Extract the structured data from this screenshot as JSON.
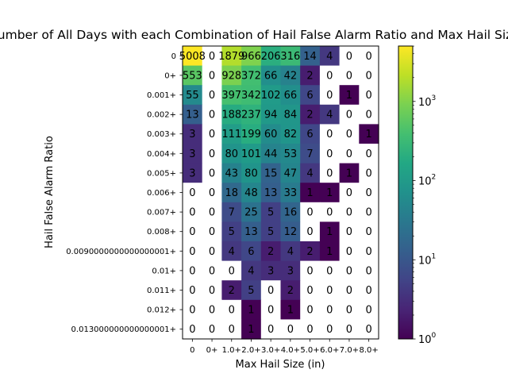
{
  "chart_data": {
    "type": "heatmap",
    "title": "Number of All Days with each Combination of Hail False Alarm Ratio and Max Hail Size",
    "xlabel": "Max Hail Size (in)",
    "ylabel": "Hail False Alarm Ratio",
    "x_categories": [
      "0",
      "0+",
      "1.0+",
      "2.0+",
      "3.0+",
      "4.0+",
      "5.0+",
      "6.0+",
      "7.0+",
      "8.0+"
    ],
    "y_categories": [
      "0",
      "0+",
      "0.001+",
      "0.002+",
      "0.003+",
      "0.004+",
      "0.005+",
      "0.006+",
      "0.007+",
      "0.008+",
      "0.0090000000000000001+",
      "0.01+",
      "0.011+",
      "0.012+",
      "0.013000000000000001+"
    ],
    "values": [
      [
        5008,
        0,
        1879,
        966,
        206,
        316,
        14,
        4,
        0,
        0
      ],
      [
        553,
        0,
        928,
        372,
        66,
        42,
        2,
        0,
        0,
        0
      ],
      [
        55,
        0,
        397,
        342,
        102,
        66,
        6,
        0,
        1,
        0
      ],
      [
        13,
        0,
        188,
        237,
        94,
        84,
        2,
        4,
        0,
        0
      ],
      [
        3,
        0,
        111,
        199,
        60,
        82,
        6,
        0,
        0,
        1
      ],
      [
        3,
        0,
        80,
        101,
        44,
        53,
        7,
        0,
        0,
        0
      ],
      [
        3,
        0,
        43,
        80,
        15,
        47,
        4,
        0,
        1,
        0
      ],
      [
        0,
        0,
        18,
        48,
        13,
        33,
        1,
        1,
        0,
        0
      ],
      [
        0,
        0,
        7,
        25,
        5,
        16,
        0,
        0,
        0,
        0
      ],
      [
        0,
        0,
        5,
        13,
        5,
        12,
        0,
        1,
        0,
        0
      ],
      [
        0,
        0,
        4,
        6,
        2,
        4,
        2,
        1,
        0,
        0
      ],
      [
        0,
        0,
        0,
        4,
        3,
        3,
        0,
        0,
        0,
        0
      ],
      [
        0,
        0,
        2,
        5,
        0,
        2,
        0,
        0,
        0,
        0
      ],
      [
        0,
        0,
        0,
        1,
        0,
        1,
        0,
        0,
        0,
        0
      ],
      [
        0,
        0,
        0,
        1,
        0,
        0,
        0,
        0,
        0,
        0
      ]
    ],
    "colorscale": "viridis",
    "color_scale_type": "log",
    "colorbar_range": [
      1,
      5008
    ],
    "colorbar_ticks": [
      {
        "base": "10",
        "exp": "0"
      },
      {
        "base": "10",
        "exp": "1"
      },
      {
        "base": "10",
        "exp": "2"
      },
      {
        "base": "10",
        "exp": "3"
      }
    ],
    "grid": false,
    "zero_cells_color": "#ffffff"
  }
}
